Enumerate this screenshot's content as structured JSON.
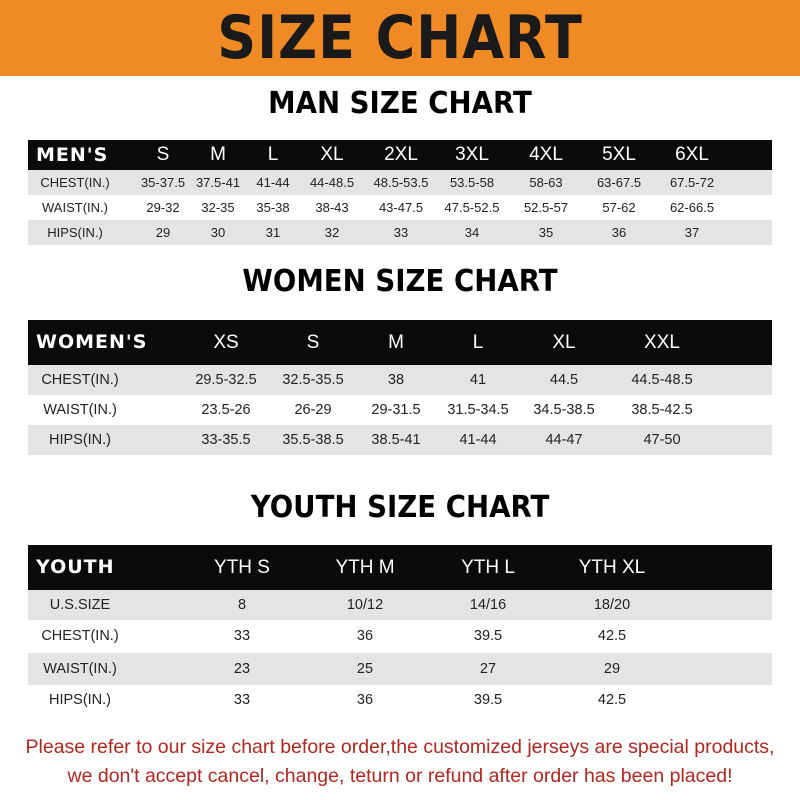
{
  "banner_title": "SIZE CHART",
  "sections": [
    {
      "title": "MAN SIZE CHART",
      "columns": [
        "MEN'S",
        "S",
        "M",
        "L",
        "XL",
        "2XL",
        "3XL",
        "4XL",
        "5XL",
        "6XL"
      ],
      "rows": [
        [
          "CHEST(IN.)",
          "35-37.5",
          "37.5-41",
          "41-44",
          "44-48.5",
          "48.5-53.5",
          "53.5-58",
          "58-63",
          "63-67.5",
          "67.5-72"
        ],
        [
          "WAIST(IN.)",
          "29-32",
          "32-35",
          "35-38",
          "38-43",
          "43-47.5",
          "47.5-52.5",
          "52.5-57",
          "57-62",
          "62-66.5"
        ],
        [
          "HIPS(IN.)",
          "29",
          "30",
          "31",
          "32",
          "33",
          "34",
          "35",
          "36",
          "37"
        ]
      ]
    },
    {
      "title": "WOMEN SIZE CHART",
      "columns": [
        "WOMEN'S",
        "XS",
        "S",
        "M",
        "L",
        "XL",
        "XXL"
      ],
      "rows": [
        [
          "CHEST(IN.)",
          "29.5-32.5",
          "32.5-35.5",
          "38",
          "41",
          "44.5",
          "44.5-48.5"
        ],
        [
          "WAIST(IN.)",
          "23.5-26",
          "26-29",
          "29-31.5",
          "31.5-34.5",
          "34.5-38.5",
          "38.5-42.5"
        ],
        [
          "HIPS(IN.)",
          "33-35.5",
          "35.5-38.5",
          "38.5-41",
          "41-44",
          "44-47",
          "47-50"
        ]
      ]
    },
    {
      "title": "YOUTH SIZE CHART",
      "columns": [
        "YOUTH",
        "YTH S",
        "YTH M",
        "YTH L",
        "YTH XL"
      ],
      "rows": [
        [
          "U.S.SIZE",
          "8",
          "10/12",
          "14/16",
          "18/20"
        ],
        [
          "CHEST(IN.)",
          "33",
          "36",
          "39.5",
          "42.5"
        ],
        [
          "WAIST(IN.)",
          "23",
          "25",
          "27",
          "29"
        ],
        [
          "HIPS(IN.)",
          "33",
          "36",
          "39.5",
          "42.5"
        ]
      ]
    }
  ],
  "notice": {
    "line1": "Please refer to our size chart before order,the customized jerseys are special products,",
    "line2": "we don't accept cancel, change, teturn or refund after order has been placed!"
  },
  "colors": {
    "banner": "#f08a24",
    "header_row": "#0b0b0b",
    "notice": "#b3261e"
  }
}
